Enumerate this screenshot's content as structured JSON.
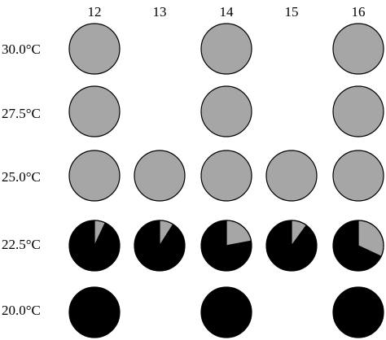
{
  "chart_data": {
    "type": "pie",
    "x_label_values": [
      "12",
      "13",
      "14",
      "15",
      "16"
    ],
    "y_label_values": [
      "30.0°C",
      "27.5°C",
      "25.0°C",
      "22.5°C",
      "20.0°C"
    ],
    "colors": {
      "gray": "#a6a6a6",
      "black": "#000000",
      "stroke": "#000000"
    },
    "series_legend": [],
    "cells": [
      {
        "x": "12",
        "y": "30.0°C",
        "gray_fraction": 1.0
      },
      {
        "x": "14",
        "y": "30.0°C",
        "gray_fraction": 1.0
      },
      {
        "x": "16",
        "y": "30.0°C",
        "gray_fraction": 1.0
      },
      {
        "x": "12",
        "y": "27.5°C",
        "gray_fraction": 1.0
      },
      {
        "x": "14",
        "y": "27.5°C",
        "gray_fraction": 1.0
      },
      {
        "x": "16",
        "y": "27.5°C",
        "gray_fraction": 1.0
      },
      {
        "x": "12",
        "y": "25.0°C",
        "gray_fraction": 1.0
      },
      {
        "x": "13",
        "y": "25.0°C",
        "gray_fraction": 1.0
      },
      {
        "x": "14",
        "y": "25.0°C",
        "gray_fraction": 1.0
      },
      {
        "x": "15",
        "y": "25.0°C",
        "gray_fraction": 1.0
      },
      {
        "x": "16",
        "y": "25.0°C",
        "gray_fraction": 1.0
      },
      {
        "x": "12",
        "y": "22.5°C",
        "gray_fraction": 0.07
      },
      {
        "x": "13",
        "y": "22.5°C",
        "gray_fraction": 0.09
      },
      {
        "x": "14",
        "y": "22.5°C",
        "gray_fraction": 0.22
      },
      {
        "x": "15",
        "y": "22.5°C",
        "gray_fraction": 0.1
      },
      {
        "x": "16",
        "y": "22.5°C",
        "gray_fraction": 0.32
      },
      {
        "x": "12",
        "y": "20.0°C",
        "gray_fraction": 0.0
      },
      {
        "x": "14",
        "y": "20.0°C",
        "gray_fraction": 0.0
      },
      {
        "x": "16",
        "y": "20.0°C",
        "gray_fraction": 0.0
      }
    ]
  }
}
